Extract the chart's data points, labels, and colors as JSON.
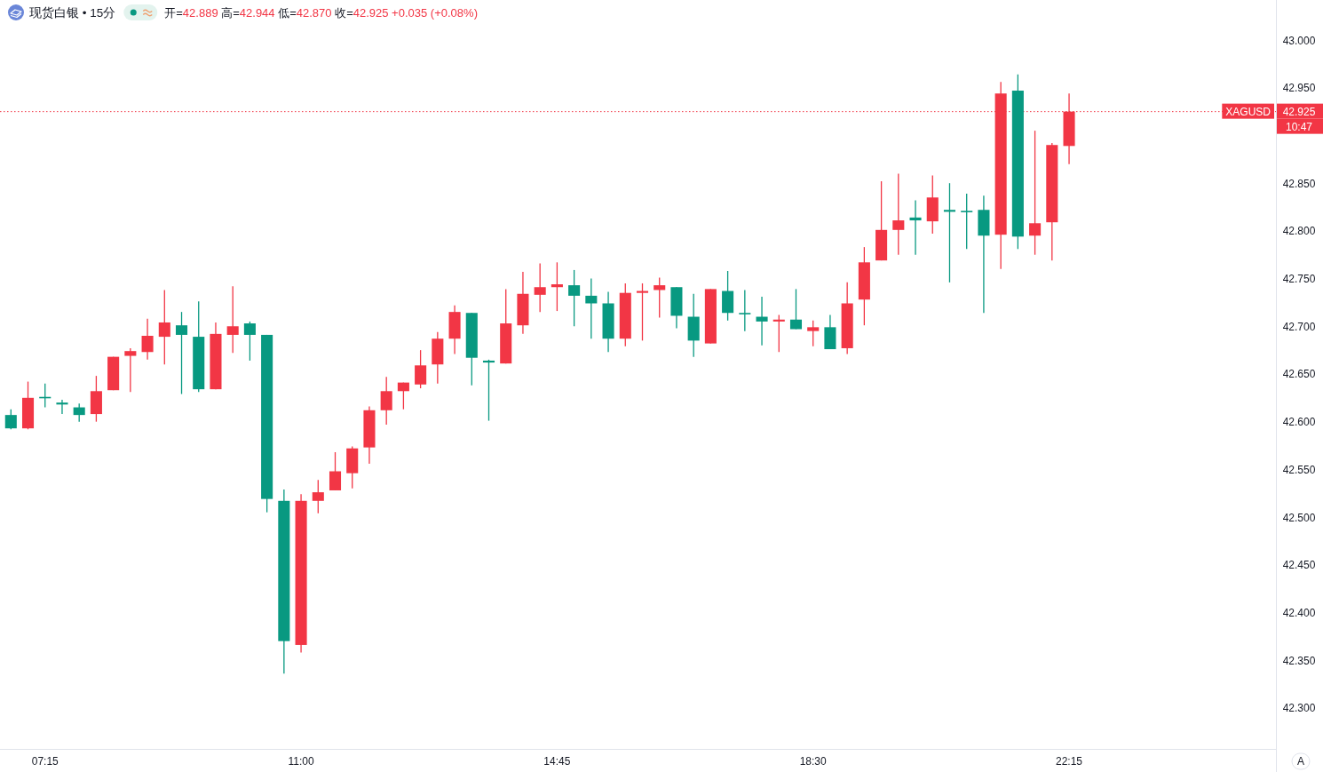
{
  "chart_data": {
    "type": "candlestick",
    "title": "现货白银 • 15分",
    "subtitle": "开=42.889 高=42.944 低=42.870 收=42.925 +0.035 (+0.08%)",
    "x": [
      6.75,
      7,
      7.25,
      7.5,
      7.75,
      8,
      8.25,
      8.5,
      8.75,
      9,
      9.25,
      9.5,
      9.75,
      10,
      10.25,
      10.5,
      10.75,
      11,
      11.25,
      11.5,
      11.75,
      12,
      12.25,
      12.5,
      12.75,
      13,
      13.25,
      13.5,
      13.75,
      14,
      14.25,
      14.5,
      14.75,
      15,
      15.25,
      15.5,
      15.75,
      16,
      16.25,
      16.5,
      16.75,
      17,
      17.25,
      17.5,
      17.75,
      18,
      18.25,
      18.5,
      18.75,
      19,
      19.25,
      19.5,
      19.75,
      20,
      20.25,
      20.5,
      20.75,
      21,
      21.25,
      21.5,
      21.75,
      22,
      22.25
    ],
    "ohlc": [
      [
        42.607,
        42.613,
        42.592,
        42.593
      ],
      [
        42.593,
        42.642,
        42.592,
        42.625
      ],
      [
        42.626,
        42.64,
        42.615,
        42.625
      ],
      [
        42.62,
        42.623,
        42.608,
        42.618
      ],
      [
        42.615,
        42.619,
        42.6,
        42.607
      ],
      [
        42.608,
        42.648,
        42.6,
        42.632
      ],
      [
        42.633,
        42.668,
        42.633,
        42.668
      ],
      [
        42.669,
        42.677,
        42.631,
        42.674
      ],
      [
        42.673,
        42.708,
        42.665,
        42.69
      ],
      [
        42.689,
        42.738,
        42.66,
        42.704
      ],
      [
        42.701,
        42.715,
        42.629,
        42.691
      ],
      [
        42.689,
        42.726,
        42.631,
        42.634
      ],
      [
        42.634,
        42.704,
        42.634,
        42.692
      ],
      [
        42.691,
        42.742,
        42.672,
        42.7
      ],
      [
        42.703,
        42.705,
        42.664,
        42.691
      ],
      [
        42.691,
        42.691,
        42.505,
        42.519
      ],
      [
        42.517,
        42.529,
        42.336,
        42.37
      ],
      [
        42.366,
        42.524,
        42.358,
        42.517
      ],
      [
        42.517,
        42.539,
        42.504,
        42.526
      ],
      [
        42.528,
        42.568,
        42.528,
        42.548
      ],
      [
        42.546,
        42.574,
        42.53,
        42.572
      ],
      [
        42.573,
        42.616,
        42.556,
        42.612
      ],
      [
        42.612,
        42.647,
        42.597,
        42.632
      ],
      [
        42.632,
        42.641,
        42.613,
        42.641
      ],
      [
        42.639,
        42.675,
        42.635,
        42.659
      ],
      [
        42.66,
        42.694,
        42.64,
        42.687
      ],
      [
        42.687,
        42.722,
        42.671,
        42.715
      ],
      [
        42.714,
        42.714,
        42.638,
        42.667
      ],
      [
        42.664,
        42.665,
        42.601,
        42.662
      ],
      [
        42.661,
        42.739,
        42.661,
        42.703
      ],
      [
        42.701,
        42.757,
        42.692,
        42.734
      ],
      [
        42.733,
        42.766,
        42.715,
        42.741
      ],
      [
        42.741,
        42.767,
        42.716,
        42.744
      ],
      [
        42.743,
        42.759,
        42.7,
        42.732
      ],
      [
        42.732,
        42.75,
        42.687,
        42.724
      ],
      [
        42.724,
        42.736,
        42.673,
        42.687
      ],
      [
        42.687,
        42.745,
        42.679,
        42.735
      ],
      [
        42.735,
        42.745,
        42.685,
        42.737
      ],
      [
        42.738,
        42.751,
        42.709,
        42.743
      ],
      [
        42.741,
        42.741,
        42.698,
        42.711
      ],
      [
        42.71,
        42.734,
        42.668,
        42.685
      ],
      [
        42.682,
        42.739,
        42.682,
        42.739
      ],
      [
        42.737,
        42.758,
        42.706,
        42.714
      ],
      [
        42.714,
        42.738,
        42.695,
        42.713
      ],
      [
        42.71,
        42.731,
        42.68,
        42.705
      ],
      [
        42.705,
        42.712,
        42.673,
        42.707
      ],
      [
        42.707,
        42.739,
        42.697,
        42.697
      ],
      [
        42.695,
        42.706,
        42.679,
        42.699
      ],
      [
        42.699,
        42.712,
        42.676,
        42.676
      ],
      [
        42.677,
        42.746,
        42.671,
        42.724
      ],
      [
        42.728,
        42.783,
        42.701,
        42.767
      ],
      [
        42.769,
        42.852,
        42.769,
        42.801
      ],
      [
        42.801,
        42.86,
        42.775,
        42.811
      ],
      [
        42.814,
        42.832,
        42.775,
        42.811
      ],
      [
        42.81,
        42.858,
        42.797,
        42.835
      ],
      [
        42.822,
        42.85,
        42.746,
        42.82
      ],
      [
        42.821,
        42.839,
        42.781,
        42.82
      ],
      [
        42.822,
        42.837,
        42.714,
        42.795
      ],
      [
        42.796,
        42.956,
        42.76,
        42.944
      ],
      [
        42.947,
        42.964,
        42.781,
        42.794
      ],
      [
        42.795,
        42.905,
        42.775,
        42.808
      ],
      [
        42.809,
        42.892,
        42.769,
        42.89
      ],
      [
        42.889,
        42.944,
        42.87,
        42.925
      ]
    ],
    "colors": [
      "#089981",
      "#f23645",
      "#089981",
      "#089981",
      "#089981",
      "#f23645",
      "#f23645",
      "#f23645",
      "#f23645",
      "#f23645",
      "#089981",
      "#089981",
      "#f23645",
      "#f23645",
      "#089981",
      "#089981",
      "#089981",
      "#f23645",
      "#f23645",
      "#f23645",
      "#f23645",
      "#f23645",
      "#f23645",
      "#f23645",
      "#f23645",
      "#f23645",
      "#f23645",
      "#089981",
      "#089981",
      "#f23645",
      "#f23645",
      "#f23645",
      "#f23645",
      "#089981",
      "#089981",
      "#089981",
      "#f23645",
      "#f23645",
      "#f23645",
      "#089981",
      "#089981",
      "#f23645",
      "#089981",
      "#089981",
      "#089981",
      "#f23645",
      "#089981",
      "#f23645",
      "#089981",
      "#f23645",
      "#f23645",
      "#f23645",
      "#f23645",
      "#089981",
      "#f23645",
      "#089981",
      "#089981",
      "#089981",
      "#f23645",
      "#089981",
      "#f23645",
      "#f23645",
      "#f23645"
    ],
    "xlim": [
      6.59,
      25.28
    ],
    "xticks": [
      {
        "value": 7.25,
        "label": "07:15"
      },
      {
        "value": 11,
        "label": "11:00"
      },
      {
        "value": 14.75,
        "label": "14:45"
      },
      {
        "value": 18.5,
        "label": "18:30"
      },
      {
        "value": 22.25,
        "label": "22:15"
      }
    ],
    "ylim": [
      42.257,
      43.042
    ],
    "yticks": [
      {
        "value": 42.3,
        "label": "42.300"
      },
      {
        "value": 42.35,
        "label": "42.350"
      },
      {
        "value": 42.4,
        "label": "42.400"
      },
      {
        "value": 42.45,
        "label": "42.450"
      },
      {
        "value": 42.5,
        "label": "42.500"
      },
      {
        "value": 42.55,
        "label": "42.550"
      },
      {
        "value": 42.6,
        "label": "42.600"
      },
      {
        "value": 42.65,
        "label": "42.650"
      },
      {
        "value": 42.7,
        "label": "42.700"
      },
      {
        "value": 42.75,
        "label": "42.750"
      },
      {
        "value": 42.8,
        "label": "42.800"
      },
      {
        "value": 42.85,
        "label": "42.850"
      },
      {
        "value": 42.95,
        "label": "42.950"
      },
      {
        "value": 43,
        "label": "43.000"
      }
    ],
    "ref_lines": [
      {
        "axis": "y",
        "value": 42.925,
        "label": "XAGUSD",
        "color": "#f23645",
        "line_style": "dotted"
      }
    ],
    "annotations": [
      "42.925",
      "10:47",
      "A"
    ]
  }
}
